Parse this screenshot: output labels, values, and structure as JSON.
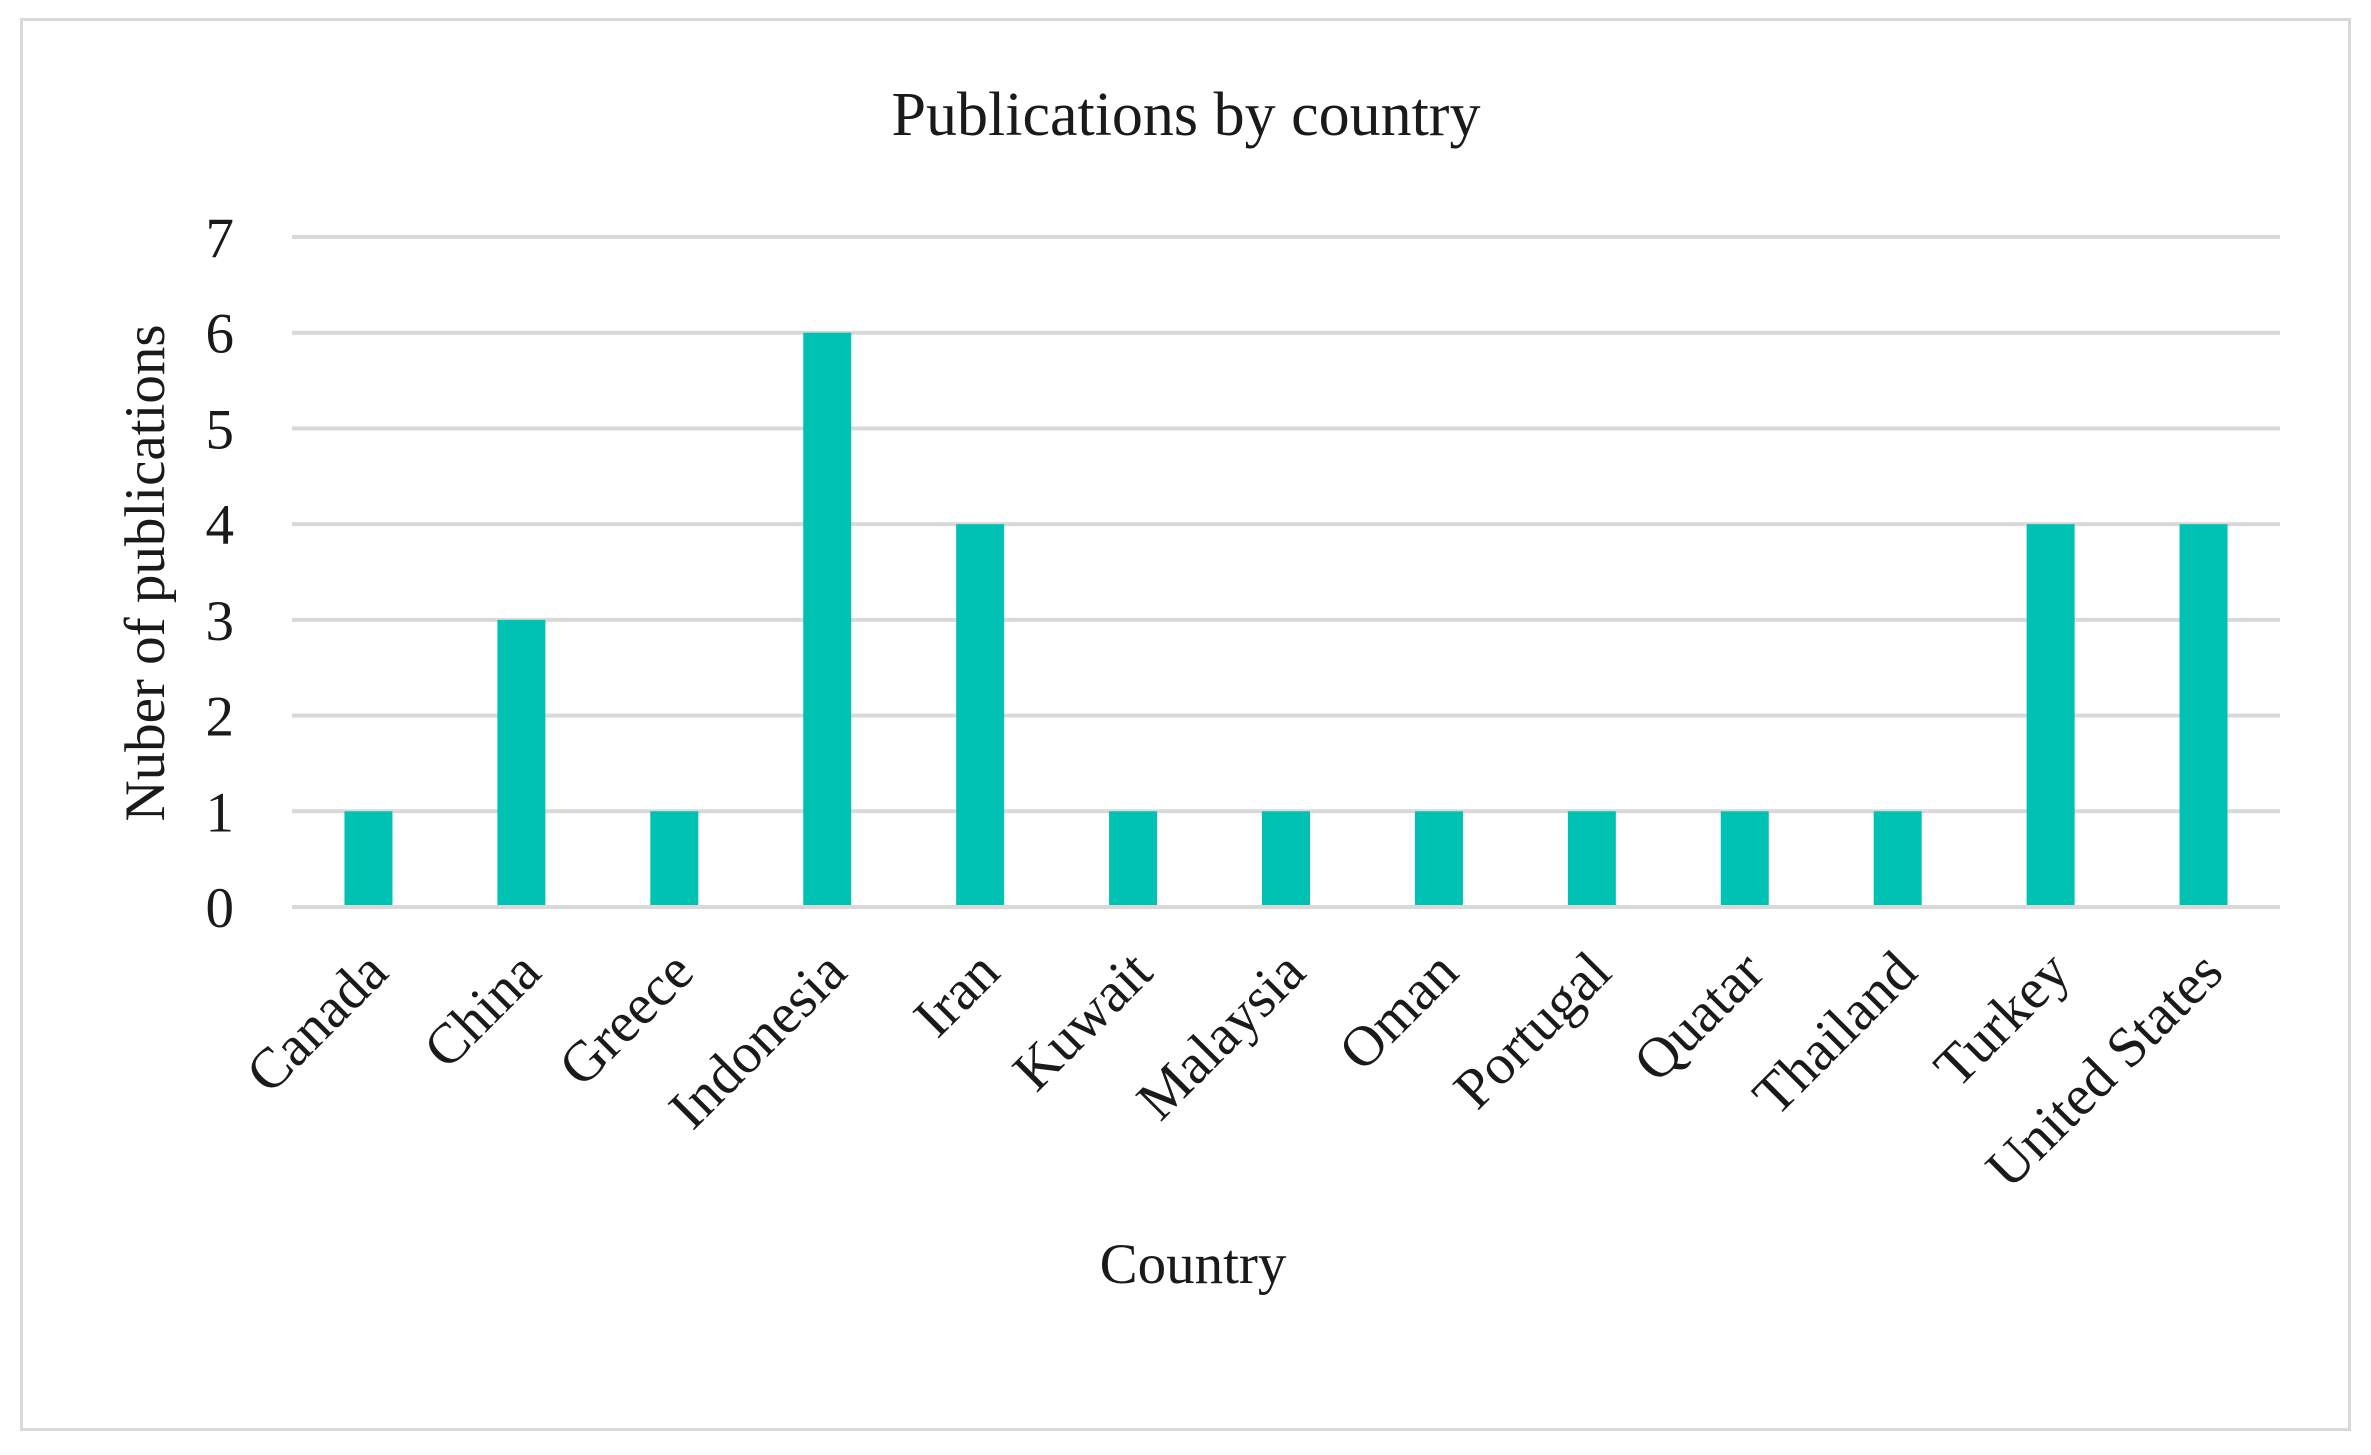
{
  "chart_data": {
    "type": "bar",
    "title": "Publications by country",
    "xlabel": "Country",
    "ylabel": "Nuber of publications",
    "categories": [
      "Canada",
      "China",
      "Greece",
      "Indonesia",
      "Iran",
      "Kuwait",
      "Malaysia",
      "Oman",
      "Portugal",
      "Quatar",
      "Thailand",
      "Turkey",
      "United States"
    ],
    "values": [
      1,
      3,
      1,
      6,
      4,
      1,
      1,
      1,
      1,
      1,
      1,
      4,
      4
    ],
    "ylim": [
      0,
      7
    ],
    "yticks": [
      "0",
      "1",
      "2",
      "3",
      "4",
      "5",
      "6",
      "7"
    ],
    "grid": true,
    "legend": "none",
    "bar_color": "#00c2b2",
    "grid_color": "#d9d9d9"
  }
}
